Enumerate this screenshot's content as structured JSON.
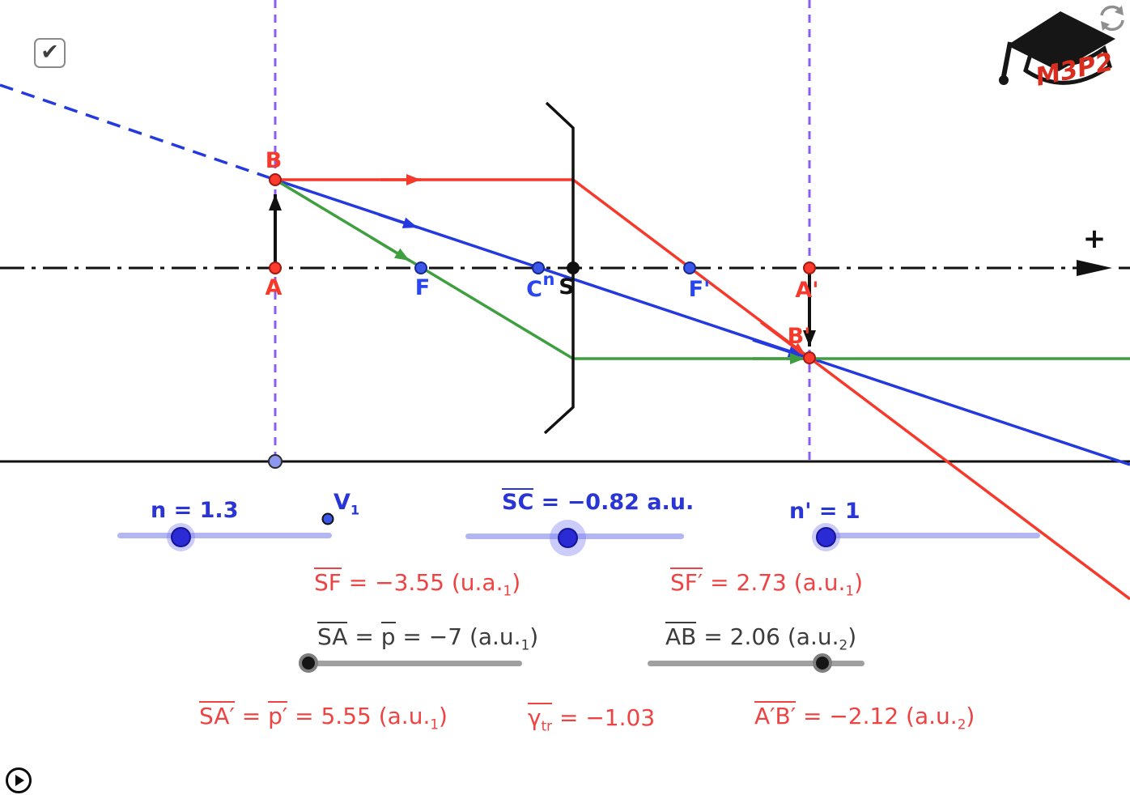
{
  "checkbox": {
    "checked": true,
    "glyph": "✔"
  },
  "logo": {
    "text": "M3P2"
  },
  "icons": {
    "checkmark": "checkbox-checkmark",
    "refresh": "circular-arrows",
    "play": "triangle-in-circle"
  },
  "diagram": {
    "plus_label": "+",
    "points": {
      "B": "B",
      "A": "A",
      "F": "F",
      "C": "C",
      "S": "S",
      "n_small": "n",
      "F_prime": "F'",
      "A_prime": "A'",
      "B_prime": "B'"
    }
  },
  "sliders": {
    "n": {
      "label": [
        {
          "t": "n = 1.3"
        }
      ],
      "value": 1.3
    },
    "v1": {
      "label": [
        {
          "t": "V",
          "sub": "1"
        }
      ]
    },
    "sc": {
      "label": [
        {
          "t": "SC",
          "ov": true
        },
        {
          "t": " = −0.82 a.u."
        }
      ],
      "value": -0.82
    },
    "n_prime": {
      "label": [
        {
          "t": "n' = 1"
        }
      ],
      "value": 1
    },
    "p": {
      "value": -7
    },
    "ab": {
      "value": 2.06
    }
  },
  "readouts": {
    "sf": {
      "parts": [
        {
          "t": "SF",
          "ov": true
        },
        {
          "t": " = −3.55 (u.a."
        },
        {
          "sub": "1"
        },
        {
          "t": ")"
        }
      ]
    },
    "sf_prime": {
      "parts": [
        {
          "t": "SF′",
          "ov": true
        },
        {
          "t": " = 2.73 (a.u."
        },
        {
          "sub": "1"
        },
        {
          "t": ")"
        }
      ]
    },
    "sa": {
      "parts": [
        {
          "t": "SA",
          "ov": true
        },
        {
          "t": " = "
        },
        {
          "t": "p",
          "ov": true
        },
        {
          "t": " = −7 (a.u."
        },
        {
          "sub": "1"
        },
        {
          "t": ")"
        }
      ]
    },
    "ab": {
      "parts": [
        {
          "t": "AB",
          "ov": true
        },
        {
          "t": " =  2.06 (a.u."
        },
        {
          "sub": "2"
        },
        {
          "t": ")"
        }
      ]
    },
    "sa_prime": {
      "parts": [
        {
          "t": "SA′",
          "ov": true
        },
        {
          "t": " = "
        },
        {
          "t": "p′",
          "ov": true
        },
        {
          "t": " = 5.55 (a.u."
        },
        {
          "sub": "1"
        },
        {
          "t": ")"
        }
      ]
    },
    "gamma": {
      "parts": [
        {
          "t": "γ",
          "sub": "tr",
          "ov": true
        },
        {
          "t": " = −1.03"
        }
      ]
    },
    "apbp": {
      "parts": [
        {
          "t": "A′B′",
          "ov": true
        },
        {
          "t": " = −2.12 (a.u."
        },
        {
          "sub": "2"
        },
        {
          "t": ")"
        }
      ]
    }
  },
  "colors": {
    "ray_red": "#f6392b",
    "ray_blue": "#2439e0",
    "ray_green": "#3f9e3f",
    "axis_black": "#111111",
    "purple_dashed": "#8a5ff0",
    "label_blue": "#2a35d6",
    "text_red": "#ef4242",
    "text_black": "#3c3c3c",
    "slider_track_blue": "#b3b6f3",
    "slider_handle_blue": "#2b2bd6",
    "slider_track_gray": "#a0a0a0",
    "slider_handle_gray": "#151515",
    "logo_red": "#d92d20"
  }
}
